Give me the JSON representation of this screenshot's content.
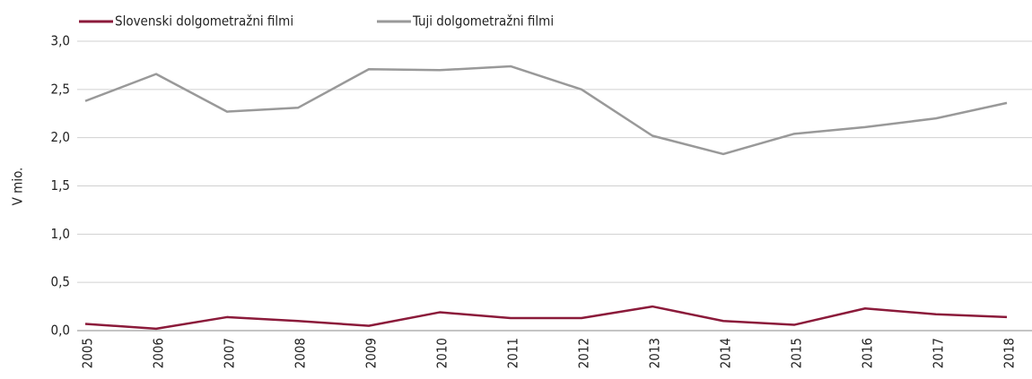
{
  "chart_data": {
    "type": "line",
    "y_label": "V mio.",
    "categories": [
      "2005",
      "2006",
      "2007",
      "2008",
      "2009",
      "2010",
      "2011",
      "2012",
      "2013",
      "2014",
      "2015",
      "2016",
      "2017",
      "2018"
    ],
    "series": [
      {
        "name": "Slovenski dolgometražni filmi",
        "color": "#8b1a3a",
        "values": [
          0.07,
          0.02,
          0.14,
          0.1,
          0.05,
          0.19,
          0.13,
          0.13,
          0.25,
          0.1,
          0.06,
          0.23,
          0.17,
          0.14
        ]
      },
      {
        "name": "Tuji dolgometražni filmi",
        "color": "#999999",
        "values": [
          2.38,
          2.66,
          2.27,
          2.31,
          2.71,
          2.7,
          2.74,
          2.5,
          2.02,
          1.83,
          2.04,
          2.11,
          2.2,
          2.36
        ]
      }
    ],
    "ylim": [
      0,
      3
    ],
    "yticks": [
      {
        "value": 0,
        "label": "0,0"
      },
      {
        "value": 0.5,
        "label": "0,5"
      },
      {
        "value": 1,
        "label": "1,0"
      },
      {
        "value": 1.5,
        "label": "1,5"
      },
      {
        "value": 2,
        "label": "2,0"
      },
      {
        "value": 2.5,
        "label": "2,5"
      },
      {
        "value": 3,
        "label": "3,0"
      }
    ],
    "grid": true
  }
}
